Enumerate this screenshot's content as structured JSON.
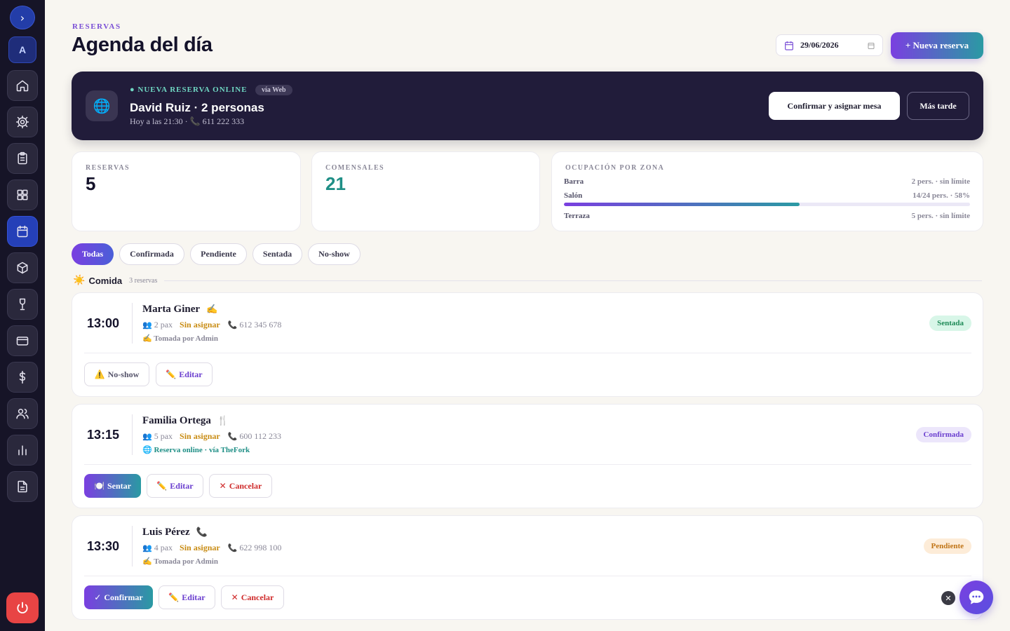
{
  "sidebar": {
    "toggle_glyph": "›",
    "avatar_letter": "A",
    "items": [
      {
        "name": "home-icon"
      },
      {
        "name": "gear-icon"
      },
      {
        "name": "clipboard-icon"
      },
      {
        "name": "grid-icon"
      },
      {
        "name": "calendar-icon",
        "active": true
      },
      {
        "name": "box-icon"
      },
      {
        "name": "wine-glass-icon"
      },
      {
        "name": "card-icon"
      },
      {
        "name": "dollar-icon"
      },
      {
        "name": "users-icon"
      },
      {
        "name": "chart-icon"
      },
      {
        "name": "document-icon"
      }
    ],
    "power_icon": "power-icon"
  },
  "header": {
    "eyebrow": "RESERVAS",
    "title": "Agenda del día",
    "date_value": "29/06/2026",
    "new_button": "+ Nueva reserva"
  },
  "banner": {
    "tag": "● NUEVA RESERVA ONLINE",
    "via": "vía Web",
    "globe": "🌐",
    "name": "David Ruiz · 2 personas",
    "sub": "Hoy a las 21:30 · 📞 611 222 333",
    "confirm_button": "Confirmar y asignar mesa",
    "later_button": "Más tarde"
  },
  "stats": {
    "reservas_label": "RESERVAS",
    "reservas_value": "5",
    "comensales_label": "COMENSALES",
    "comensales_value": "21",
    "ocupacion_label": "OCUPACIÓN POR ZONA",
    "zones": [
      {
        "name": "Barra",
        "info": "2 pers. · sin límite"
      },
      {
        "name": "Salón",
        "info": "14/24 pers. · 58%",
        "fill": 0.58
      },
      {
        "name": "Terraza",
        "info": "5 pers. · sin límite"
      }
    ]
  },
  "filters": [
    "Todas",
    "Confirmada",
    "Pendiente",
    "Sentada",
    "No-show"
  ],
  "section": {
    "sun": "☀️",
    "title": "Comida",
    "count": "3 reservas"
  },
  "reservations": [
    {
      "time": "13:00",
      "name": "Marta Giner",
      "name_icon": "✍️",
      "pax_icon": "👥",
      "pax": "2 pax",
      "table": "Sin asignar",
      "phone_icon": "📞",
      "phone": "612 345 678",
      "note": "✍️ Tomada por Admin",
      "status": "Sentada",
      "actions": [
        {
          "icon": "⚠️",
          "label": "No-show"
        },
        {
          "icon": "✏️",
          "label": "Editar"
        }
      ]
    },
    {
      "time": "13:15",
      "name": "Familia Ortega",
      "name_icon": "🍴",
      "pax_icon": "👥",
      "pax": "5 pax",
      "table": "Sin asignar",
      "phone_icon": "📞",
      "phone": "600 112 233",
      "note": "🌐 Reserva online · vía TheFork",
      "status": "Confirmada",
      "actions": [
        {
          "icon": "🍽️",
          "label": "Sentar"
        },
        {
          "icon": "✏️",
          "label": "Editar"
        },
        {
          "icon": "✕",
          "label": "Cancelar"
        }
      ]
    },
    {
      "time": "13:30",
      "name": "Luis Pérez",
      "name_icon": "📞",
      "pax_icon": "👥",
      "pax": "4 pax",
      "table": "Sin asignar",
      "phone_icon": "📞",
      "phone": "622 998 100",
      "note": "✍️ Tomada por Admin",
      "status": "Pendiente",
      "actions": [
        {
          "icon": "✓",
          "label": "Confirmar"
        },
        {
          "icon": "✏️",
          "label": "Editar"
        },
        {
          "icon": "✕",
          "label": "Cancelar"
        }
      ]
    }
  ],
  "chat": {
    "close_glyph": "✕"
  }
}
